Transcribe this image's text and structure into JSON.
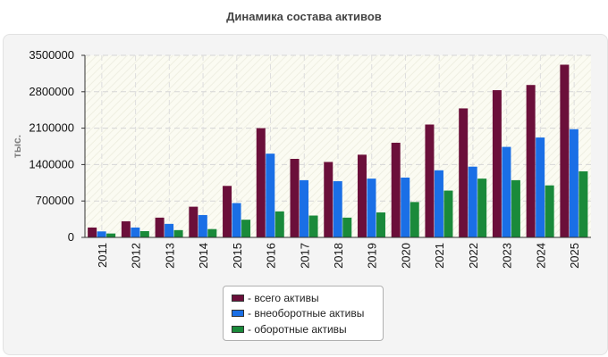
{
  "chart_data": {
    "type": "bar",
    "title": "Динамика состава активов",
    "ylabel": "тыс.",
    "xlabel": "",
    "ylim": [
      0,
      3500000
    ],
    "yticks": [
      0,
      700000,
      1400000,
      2100000,
      2800000,
      3500000
    ],
    "categories": [
      "2011",
      "2012",
      "2013",
      "2014",
      "2015",
      "2016",
      "2017",
      "2018",
      "2019",
      "2020",
      "2021",
      "2022",
      "2023",
      "2024",
      "2025"
    ],
    "series": [
      {
        "name": "- всего активы",
        "color": "#6b0f3a",
        "values": [
          190000,
          310000,
          380000,
          590000,
          990000,
          2100000,
          1510000,
          1450000,
          1590000,
          1820000,
          2170000,
          2480000,
          2830000,
          2930000,
          3320000
        ]
      },
      {
        "name": "- внеоборотные активы",
        "color": "#1a6fe6",
        "values": [
          115000,
          190000,
          260000,
          430000,
          660000,
          1610000,
          1100000,
          1080000,
          1130000,
          1150000,
          1290000,
          1360000,
          1740000,
          1920000,
          2080000
        ]
      },
      {
        "name": "- оборотные активы",
        "color": "#1a8a3a",
        "values": [
          75000,
          120000,
          140000,
          160000,
          340000,
          500000,
          420000,
          380000,
          480000,
          680000,
          900000,
          1130000,
          1100000,
          1000000,
          1270000
        ]
      }
    ],
    "grid": true,
    "legend_position": "bottom"
  }
}
